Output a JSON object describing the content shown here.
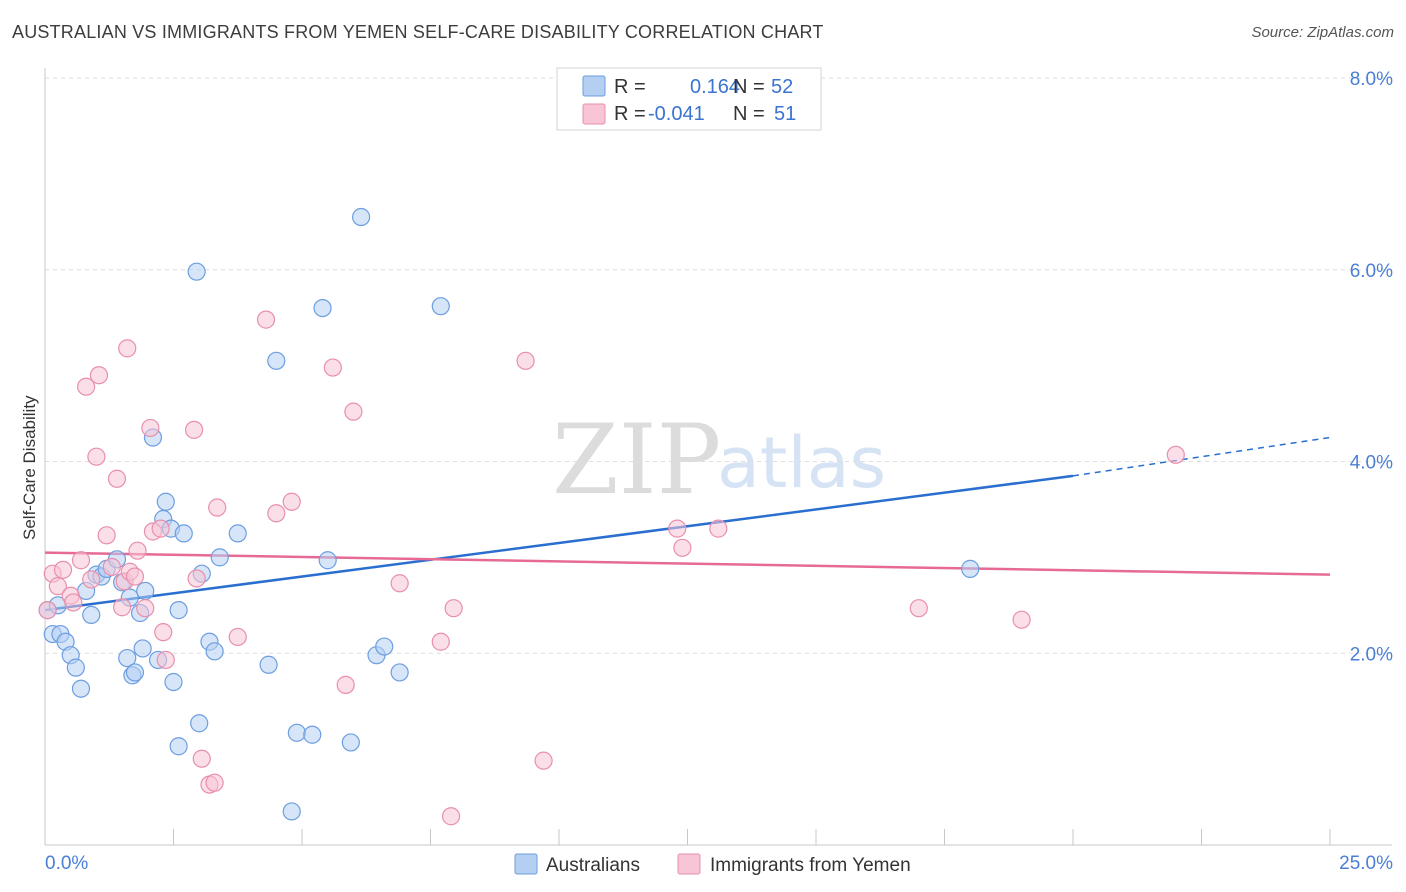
{
  "title": "AUSTRALIAN VS IMMIGRANTS FROM YEMEN SELF-CARE DISABILITY CORRELATION CHART",
  "source": "Source: ZipAtlas.com",
  "watermark": {
    "zip": "ZIP",
    "atlas": "atlas"
  },
  "colors": {
    "blue_fill": "#b4cff2",
    "blue_stroke": "#6d9ee0",
    "blue_line": "#2a6fd0",
    "pink_fill": "#f7c5d5",
    "pink_stroke": "#e98fab",
    "pink_line": "#e66a95",
    "axis_text": "#4a7fd4",
    "grid": "#dedede"
  },
  "legend": {
    "rows": [
      {
        "r_label": "R =",
        "r_value": "0.164",
        "n_label": "N =",
        "n_value": "52"
      },
      {
        "r_label": "R =",
        "r_value": "-0.041",
        "n_label": "N =",
        "n_value": "51"
      }
    ]
  },
  "bottom_legend": {
    "series1": "Australians",
    "series2": "Immigrants from Yemen"
  },
  "chart_data": {
    "type": "scatter",
    "title": "AUSTRALIAN VS IMMIGRANTS FROM YEMEN SELF-CARE DISABILITY CORRELATION CHART",
    "xlabel": "",
    "ylabel": "Self-Care Disability",
    "xlim": [
      0,
      25
    ],
    "ylim": [
      0,
      8.0
    ],
    "x_tick_labels": [
      "0.0%",
      "25.0%"
    ],
    "y_ticks": [
      2.0,
      4.0,
      6.0,
      8.0
    ],
    "y_tick_labels": [
      "2.0%",
      "4.0%",
      "6.0%",
      "8.0%"
    ],
    "grid": true,
    "legend_position": "top-center",
    "series": [
      {
        "name": "Australians",
        "color": "#6d9ee0",
        "trend": {
          "x": [
            0,
            20
          ],
          "y": [
            2.45,
            3.85
          ],
          "dashed_to": [
            25,
            4.25
          ]
        },
        "points": [
          [
            0.05,
            2.45
          ],
          [
            0.15,
            2.2
          ],
          [
            0.3,
            2.2
          ],
          [
            0.4,
            2.12
          ],
          [
            0.5,
            1.98
          ],
          [
            0.6,
            1.85
          ],
          [
            0.7,
            1.63
          ],
          [
            0.8,
            2.65
          ],
          [
            0.9,
            2.4
          ],
          [
            1.0,
            2.82
          ],
          [
            1.1,
            2.8
          ],
          [
            1.2,
            2.88
          ],
          [
            1.4,
            2.98
          ],
          [
            1.5,
            2.74
          ],
          [
            1.6,
            1.95
          ],
          [
            1.65,
            2.58
          ],
          [
            1.7,
            1.77
          ],
          [
            1.75,
            1.8
          ],
          [
            1.85,
            2.42
          ],
          [
            1.9,
            2.05
          ],
          [
            1.95,
            2.65
          ],
          [
            2.1,
            4.25
          ],
          [
            2.2,
            1.93
          ],
          [
            2.3,
            3.4
          ],
          [
            2.35,
            3.58
          ],
          [
            2.45,
            3.3
          ],
          [
            2.5,
            1.7
          ],
          [
            2.6,
            2.45
          ],
          [
            2.7,
            3.25
          ],
          [
            2.95,
            5.98
          ],
          [
            3.0,
            1.27
          ],
          [
            3.05,
            2.83
          ],
          [
            3.2,
            2.12
          ],
          [
            3.3,
            2.02
          ],
          [
            3.4,
            3.0
          ],
          [
            3.75,
            3.25
          ],
          [
            4.35,
            1.88
          ],
          [
            4.5,
            5.05
          ],
          [
            4.8,
            0.35
          ],
          [
            4.9,
            1.17
          ],
          [
            5.2,
            1.15
          ],
          [
            5.4,
            5.6
          ],
          [
            5.5,
            2.97
          ],
          [
            6.15,
            6.55
          ],
          [
            5.95,
            1.07
          ],
          [
            6.45,
            1.98
          ],
          [
            6.6,
            2.07
          ],
          [
            6.9,
            1.8
          ],
          [
            7.7,
            5.62
          ],
          [
            18.0,
            2.88
          ],
          [
            2.6,
            1.03
          ],
          [
            0.25,
            2.5
          ]
        ]
      },
      {
        "name": "Immigrants from Yemen",
        "color": "#e98fab",
        "trend": {
          "x": [
            0,
            25
          ],
          "y": [
            3.05,
            2.82
          ]
        },
        "points": [
          [
            0.05,
            2.45
          ],
          [
            0.15,
            2.83
          ],
          [
            0.25,
            2.7
          ],
          [
            0.35,
            2.87
          ],
          [
            0.5,
            2.6
          ],
          [
            0.55,
            2.53
          ],
          [
            0.7,
            2.97
          ],
          [
            0.8,
            4.78
          ],
          [
            0.9,
            2.77
          ],
          [
            1.0,
            4.05
          ],
          [
            1.05,
            4.9
          ],
          [
            1.2,
            3.23
          ],
          [
            1.3,
            2.9
          ],
          [
            1.4,
            3.82
          ],
          [
            1.5,
            2.48
          ],
          [
            1.55,
            2.75
          ],
          [
            1.6,
            5.18
          ],
          [
            1.65,
            2.85
          ],
          [
            1.75,
            2.8
          ],
          [
            1.8,
            3.07
          ],
          [
            1.95,
            2.47
          ],
          [
            2.05,
            4.35
          ],
          [
            2.1,
            3.27
          ],
          [
            2.25,
            3.3
          ],
          [
            2.3,
            2.22
          ],
          [
            2.35,
            1.93
          ],
          [
            2.9,
            4.33
          ],
          [
            2.95,
            2.78
          ],
          [
            3.05,
            0.9
          ],
          [
            3.2,
            0.63
          ],
          [
            3.3,
            0.65
          ],
          [
            3.35,
            3.52
          ],
          [
            3.75,
            2.17
          ],
          [
            4.3,
            5.48
          ],
          [
            4.5,
            3.46
          ],
          [
            4.8,
            3.58
          ],
          [
            5.6,
            4.98
          ],
          [
            5.85,
            1.67
          ],
          [
            6.0,
            4.52
          ],
          [
            6.9,
            2.73
          ],
          [
            7.7,
            2.12
          ],
          [
            7.9,
            0.3
          ],
          [
            7.95,
            2.47
          ],
          [
            9.35,
            5.05
          ],
          [
            9.7,
            0.88
          ],
          [
            12.3,
            3.3
          ],
          [
            12.4,
            3.1
          ],
          [
            13.1,
            3.3
          ],
          [
            17.0,
            2.47
          ],
          [
            19.0,
            2.35
          ],
          [
            22.0,
            4.07
          ]
        ]
      }
    ]
  }
}
